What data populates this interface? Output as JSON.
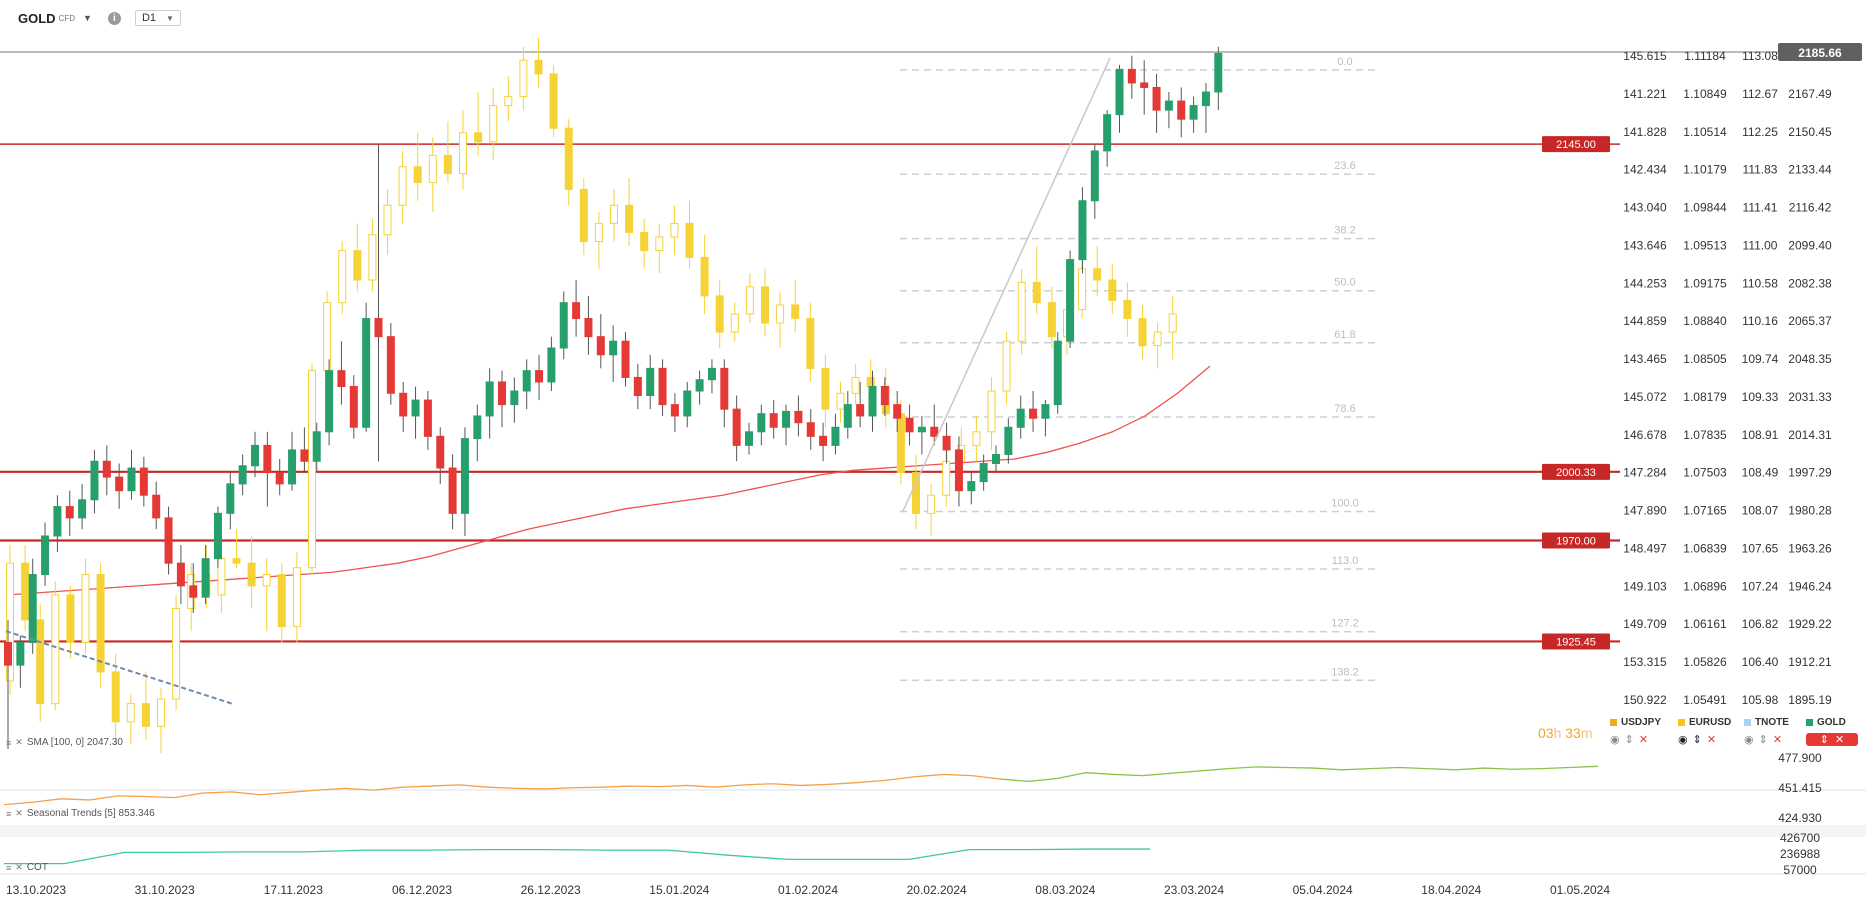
{
  "header": {
    "symbol": "GOLD",
    "instrument_type": "CFD",
    "timeframe": "D1",
    "info_icon": "info-icon"
  },
  "indicators": {
    "sma_label": "SMA [100, 0] 2047.30",
    "seasonal_label": "Seasonal  Trends  [5]  853.346",
    "cot_label": "COT"
  },
  "countdown": {
    "hours": "03",
    "h": "h",
    "minutes": "33",
    "m": "m"
  },
  "legend": [
    {
      "name": "USDJPY",
      "color": "#f5a623"
    },
    {
      "name": "EURUSD",
      "color": "#f5c518"
    },
    {
      "name": "TNOTE",
      "color": "#a8d4f0"
    },
    {
      "name": "GOLD",
      "color": "#26a06b"
    }
  ],
  "colors": {
    "bull_main": "#26a06b",
    "bear_main": "#e53935",
    "overlay": "#f5d337",
    "level": "#c62828",
    "sma": "#ef5350",
    "seasonal_orange": "#f5a04a",
    "seasonal_green": "#8bc34a",
    "cot": "#3cc9a0",
    "fib": "#cfcfcf",
    "price_tag": "#606060"
  },
  "chart_data": {
    "type": "candlestick",
    "title": "GOLD CFD D1",
    "x_labels": [
      "13.10.2023",
      "31.10.2023",
      "17.11.2023",
      "06.12.2023",
      "26.12.2023",
      "15.01.2024",
      "01.02.2024",
      "20.02.2024",
      "08.03.2024",
      "23.03.2024",
      "05.04.2024",
      "18.04.2024",
      "01.05.2024"
    ],
    "y_axes": {
      "col1": [
        "145.615",
        "141.221",
        "141.828",
        "142.434",
        "143.040",
        "143.646",
        "144.253",
        "144.859",
        "143.465",
        "145.072",
        "146.678",
        "147.284",
        "147.890",
        "148.497",
        "149.103",
        "149.709",
        "153.315",
        "150.922"
      ],
      "col2": [
        "1.11184",
        "1.10849",
        "1.10514",
        "1.10179",
        "1.09844",
        "1.09513",
        "1.09175",
        "1.08840",
        "1.08505",
        "1.08179",
        "1.07835",
        "1.07503",
        "1.07165",
        "1.06839",
        "1.06896",
        "1.06161",
        "1.05826",
        "1.05491"
      ],
      "col3": [
        "113.08",
        "112.67",
        "112.25",
        "111.83",
        "111.41",
        "111.00",
        "110.58",
        "110.16",
        "109.74",
        "109.33",
        "108.91",
        "108.49",
        "108.07",
        "107.65",
        "107.24",
        "106.82",
        "106.40",
        "105.98"
      ],
      "col4": [
        "2185.66",
        "2167.49",
        "2150.45",
        "2133.44",
        "2116.42",
        "2099.40",
        "2082.38",
        "2065.37",
        "2048.35",
        "2031.33",
        "2014.31",
        "1997.29",
        "1980.28",
        "1963.26",
        "1946.24",
        "1929.22",
        "1912.21",
        "1895.19"
      ]
    },
    "last_price": "2185.66",
    "levels": [
      {
        "label": "2145.00",
        "value": 2145.0
      },
      {
        "label": "2000.33",
        "value": 2000.33
      },
      {
        "label": "1970.00",
        "value": 1970.0
      },
      {
        "label": "1925.45",
        "value": 1925.45
      }
    ],
    "fibonacci": [
      "0.0",
      "23.6",
      "38.2",
      "50.0",
      "61.8",
      "78.6",
      "100.0",
      "113.0",
      "127.2",
      "138.2"
    ],
    "main_series": [
      [
        1925,
        1935,
        1878,
        1915
      ],
      [
        1915,
        1928,
        1905,
        1925
      ],
      [
        1925,
        1962,
        1920,
        1955
      ],
      [
        1955,
        1978,
        1950,
        1972
      ],
      [
        1972,
        1990,
        1965,
        1985
      ],
      [
        1985,
        1992,
        1972,
        1980
      ],
      [
        1980,
        1995,
        1975,
        1988
      ],
      [
        1988,
        2010,
        1982,
        2005
      ],
      [
        2005,
        2012,
        1990,
        1998
      ],
      [
        1998,
        2004,
        1984,
        1992
      ],
      [
        1992,
        2010,
        1988,
        2002
      ],
      [
        2002,
        2007,
        1985,
        1990
      ],
      [
        1990,
        1996,
        1975,
        1980
      ],
      [
        1980,
        1985,
        1955,
        1960
      ],
      [
        1960,
        1968,
        1942,
        1950
      ],
      [
        1950,
        1960,
        1938,
        1945
      ],
      [
        1945,
        1968,
        1942,
        1962
      ],
      [
        1962,
        1985,
        1958,
        1982
      ],
      [
        1982,
        2000,
        1975,
        1995
      ],
      [
        1995,
        2008,
        1990,
        2003
      ],
      [
        2003,
        2018,
        1998,
        2012
      ],
      [
        2012,
        2018,
        1985,
        2000
      ],
      [
        2000,
        2006,
        1990,
        1995
      ],
      [
        1995,
        2018,
        1992,
        2010
      ],
      [
        2010,
        2020,
        2000,
        2005
      ],
      [
        2005,
        2022,
        2000,
        2018
      ],
      [
        2018,
        2050,
        2012,
        2045
      ],
      [
        2045,
        2058,
        2030,
        2038
      ],
      [
        2038,
        2043,
        2015,
        2020
      ],
      [
        2020,
        2075,
        2018,
        2068
      ],
      [
        2068,
        2145,
        2005,
        2060
      ],
      [
        2060,
        2066,
        2030,
        2035
      ],
      [
        2035,
        2040,
        2018,
        2025
      ],
      [
        2025,
        2038,
        2015,
        2032
      ],
      [
        2032,
        2036,
        2010,
        2016
      ],
      [
        2016,
        2020,
        1995,
        2002
      ],
      [
        2002,
        2008,
        1975,
        1982
      ],
      [
        1982,
        2020,
        1972,
        2015
      ],
      [
        2015,
        2030,
        2005,
        2025
      ],
      [
        2025,
        2046,
        2015,
        2040
      ],
      [
        2040,
        2045,
        2020,
        2030
      ],
      [
        2030,
        2042,
        2022,
        2036
      ],
      [
        2036,
        2050,
        2028,
        2045
      ],
      [
        2045,
        2052,
        2032,
        2040
      ],
      [
        2040,
        2060,
        2036,
        2055
      ],
      [
        2055,
        2080,
        2050,
        2075
      ],
      [
        2075,
        2085,
        2060,
        2068
      ],
      [
        2068,
        2078,
        2052,
        2060
      ],
      [
        2060,
        2070,
        2046,
        2052
      ],
      [
        2052,
        2065,
        2040,
        2058
      ],
      [
        2058,
        2062,
        2038,
        2042
      ],
      [
        2042,
        2048,
        2028,
        2034
      ],
      [
        2034,
        2052,
        2028,
        2046
      ],
      [
        2046,
        2050,
        2025,
        2030
      ],
      [
        2030,
        2035,
        2018,
        2025
      ],
      [
        2025,
        2040,
        2020,
        2036
      ],
      [
        2036,
        2045,
        2030,
        2041
      ],
      [
        2041,
        2050,
        2035,
        2046
      ],
      [
        2046,
        2050,
        2020,
        2028
      ],
      [
        2028,
        2034,
        2005,
        2012
      ],
      [
        2012,
        2022,
        2008,
        2018
      ],
      [
        2018,
        2030,
        2012,
        2026
      ],
      [
        2026,
        2032,
        2015,
        2020
      ],
      [
        2020,
        2030,
        2012,
        2027
      ],
      [
        2027,
        2034,
        2016,
        2022
      ],
      [
        2022,
        2028,
        2010,
        2016
      ],
      [
        2016,
        2022,
        2005,
        2012
      ],
      [
        2012,
        2026,
        2008,
        2020
      ],
      [
        2020,
        2036,
        2015,
        2030
      ],
      [
        2030,
        2040,
        2020,
        2025
      ],
      [
        2025,
        2045,
        2018,
        2038
      ],
      [
        2038,
        2042,
        2025,
        2030
      ],
      [
        2030,
        2036,
        2018,
        2024
      ],
      [
        2024,
        2030,
        2012,
        2018
      ],
      [
        2018,
        2025,
        2008,
        2020
      ],
      [
        2020,
        2030,
        2012,
        2016
      ],
      [
        2016,
        2022,
        2004,
        2010
      ],
      [
        2010,
        2016,
        1985,
        1992
      ],
      [
        1992,
        2000,
        1986,
        1996
      ],
      [
        1996,
        2008,
        1992,
        2004
      ],
      [
        2004,
        2012,
        2000,
        2008
      ],
      [
        2008,
        2024,
        2004,
        2020
      ],
      [
        2020,
        2034,
        2015,
        2028
      ],
      [
        2028,
        2036,
        2018,
        2024
      ],
      [
        2024,
        2032,
        2016,
        2030
      ],
      [
        2030,
        2062,
        2026,
        2058
      ],
      [
        2058,
        2098,
        2055,
        2094
      ],
      [
        2094,
        2126,
        2088,
        2120
      ],
      [
        2120,
        2145,
        2112,
        2142
      ],
      [
        2142,
        2160,
        2135,
        2158
      ],
      [
        2158,
        2180,
        2150,
        2178
      ],
      [
        2178,
        2184,
        2165,
        2172
      ],
      [
        2172,
        2182,
        2158,
        2170
      ],
      [
        2170,
        2176,
        2150,
        2160
      ],
      [
        2160,
        2168,
        2152,
        2164
      ],
      [
        2164,
        2170,
        2148,
        2156
      ],
      [
        2156,
        2166,
        2150,
        2162
      ],
      [
        2162,
        2172,
        2150,
        2168
      ],
      [
        2168,
        2188,
        2160,
        2185
      ]
    ],
    "overlay_series": [
      [
        1908,
        1968,
        1902,
        1960
      ],
      [
        1960,
        1968,
        1930,
        1935
      ],
      [
        1935,
        1942,
        1890,
        1898
      ],
      [
        1898,
        1952,
        1895,
        1946
      ],
      [
        1946,
        1950,
        1918,
        1925
      ],
      [
        1925,
        1962,
        1920,
        1955
      ],
      [
        1955,
        1960,
        1905,
        1912
      ],
      [
        1912,
        1920,
        1880,
        1890
      ],
      [
        1890,
        1902,
        1880,
        1898
      ],
      [
        1898,
        1912,
        1882,
        1888
      ],
      [
        1888,
        1905,
        1876,
        1900
      ],
      [
        1900,
        1946,
        1895,
        1940
      ],
      [
        1940,
        1960,
        1930,
        1955
      ],
      [
        1955,
        1968,
        1940,
        1946
      ],
      [
        1946,
        1970,
        1938,
        1962
      ],
      [
        1962,
        1975,
        1958,
        1960
      ],
      [
        1960,
        1972,
        1940,
        1950
      ],
      [
        1950,
        1962,
        1930,
        1955
      ],
      [
        1955,
        1960,
        1925,
        1932
      ],
      [
        1932,
        1965,
        1925,
        1958
      ],
      [
        1958,
        2048,
        1955,
        2045
      ],
      [
        2045,
        2080,
        2040,
        2075
      ],
      [
        2075,
        2102,
        2070,
        2098
      ],
      [
        2098,
        2110,
        2080,
        2085
      ],
      [
        2085,
        2112,
        2080,
        2105
      ],
      [
        2105,
        2125,
        2096,
        2118
      ],
      [
        2118,
        2142,
        2110,
        2135
      ],
      [
        2135,
        2150,
        2120,
        2128
      ],
      [
        2128,
        2148,
        2115,
        2140
      ],
      [
        2140,
        2155,
        2128,
        2132
      ],
      [
        2132,
        2160,
        2125,
        2150
      ],
      [
        2150,
        2168,
        2140,
        2146
      ],
      [
        2146,
        2170,
        2138,
        2162
      ],
      [
        2162,
        2175,
        2155,
        2166
      ],
      [
        2166,
        2188,
        2160,
        2182
      ],
      [
        2182,
        2192,
        2170,
        2176
      ],
      [
        2176,
        2180,
        2148,
        2152
      ],
      [
        2152,
        2156,
        2118,
        2125
      ],
      [
        2125,
        2130,
        2096,
        2102
      ],
      [
        2102,
        2115,
        2090,
        2110
      ],
      [
        2110,
        2125,
        2102,
        2118
      ],
      [
        2118,
        2130,
        2100,
        2106
      ],
      [
        2106,
        2112,
        2090,
        2098
      ],
      [
        2098,
        2110,
        2088,
        2104
      ],
      [
        2104,
        2118,
        2096,
        2110
      ],
      [
        2110,
        2120,
        2090,
        2095
      ],
      [
        2095,
        2105,
        2070,
        2078
      ],
      [
        2078,
        2085,
        2055,
        2062
      ],
      [
        2062,
        2075,
        2058,
        2070
      ],
      [
        2070,
        2088,
        2066,
        2082
      ],
      [
        2082,
        2090,
        2060,
        2066
      ],
      [
        2066,
        2080,
        2055,
        2074
      ],
      [
        2074,
        2085,
        2062,
        2068
      ],
      [
        2068,
        2075,
        2040,
        2046
      ],
      [
        2046,
        2052,
        2020,
        2028
      ],
      [
        2028,
        2040,
        2022,
        2035
      ],
      [
        2035,
        2048,
        2030,
        2042
      ],
      [
        2042,
        2050,
        2032,
        2038
      ],
      [
        2038,
        2046,
        2020,
        2026
      ],
      [
        2026,
        2032,
        1995,
        2000
      ],
      [
        2000,
        2008,
        1975,
        1982
      ],
      [
        1982,
        1995,
        1972,
        1990
      ],
      [
        1990,
        2010,
        1985,
        2005
      ],
      [
        2005,
        2020,
        1998,
        2012
      ],
      [
        2012,
        2025,
        2005,
        2018
      ],
      [
        2018,
        2042,
        2010,
        2036
      ],
      [
        2036,
        2062,
        2030,
        2058
      ],
      [
        2058,
        2090,
        2052,
        2084
      ],
      [
        2084,
        2100,
        2070,
        2075
      ],
      [
        2075,
        2082,
        2055,
        2060
      ],
      [
        2060,
        2078,
        2052,
        2072
      ],
      [
        2072,
        2095,
        2068,
        2090
      ],
      [
        2090,
        2100,
        2078,
        2085
      ],
      [
        2085,
        2092,
        2070,
        2076
      ],
      [
        2076,
        2084,
        2060,
        2068
      ],
      [
        2068,
        2074,
        2050,
        2056
      ],
      [
        2056,
        2066,
        2046,
        2062
      ],
      [
        2062,
        2078,
        2050,
        2070
      ]
    ],
    "sma_series": [
      1946,
      1947,
      1948,
      1949,
      1950,
      1951,
      1952,
      1953,
      1954,
      1955,
      1956,
      1958,
      1960,
      1963,
      1967,
      1971,
      1975,
      1978,
      1981,
      1984,
      1986,
      1988,
      1990,
      1993,
      1996,
      1999,
      2001,
      2002,
      2003,
      2004,
      2005,
      2006,
      2009,
      2013,
      2018,
      2025,
      2035,
      2047
    ],
    "seasonal_series": [
      0.3,
      0.34,
      0.4,
      0.38,
      0.45,
      0.44,
      0.42,
      0.5,
      0.52,
      0.47,
      0.51,
      0.55,
      0.58,
      0.55,
      0.6,
      0.62,
      0.64,
      0.6,
      0.58,
      0.57,
      0.59,
      0.6,
      0.62,
      0.61,
      0.63,
      0.6,
      0.64,
      0.66,
      0.63,
      0.65,
      0.68,
      0.72,
      0.78,
      0.82,
      0.8,
      0.74,
      0.7,
      0.75,
      0.85,
      0.82,
      0.8,
      0.84,
      0.88,
      0.92,
      0.95,
      0.94,
      0.93,
      0.9,
      0.92,
      0.94,
      0.92,
      0.9,
      0.93,
      0.91,
      0.92,
      0.94,
      0.96
    ],
    "cot_series": [
      0.3,
      0.3,
      0.7,
      0.7,
      0.72,
      0.72,
      0.78,
      0.78,
      0.8,
      0.8,
      0.78,
      0.78,
      0.6,
      0.45,
      0.45,
      0.45,
      0.8,
      0.8,
      0.82,
      0.82
    ],
    "cot_axis": [
      "426700",
      "236988",
      "57000"
    ],
    "seasonal_axis": [
      "477.900",
      "451.415",
      "424.930"
    ]
  }
}
